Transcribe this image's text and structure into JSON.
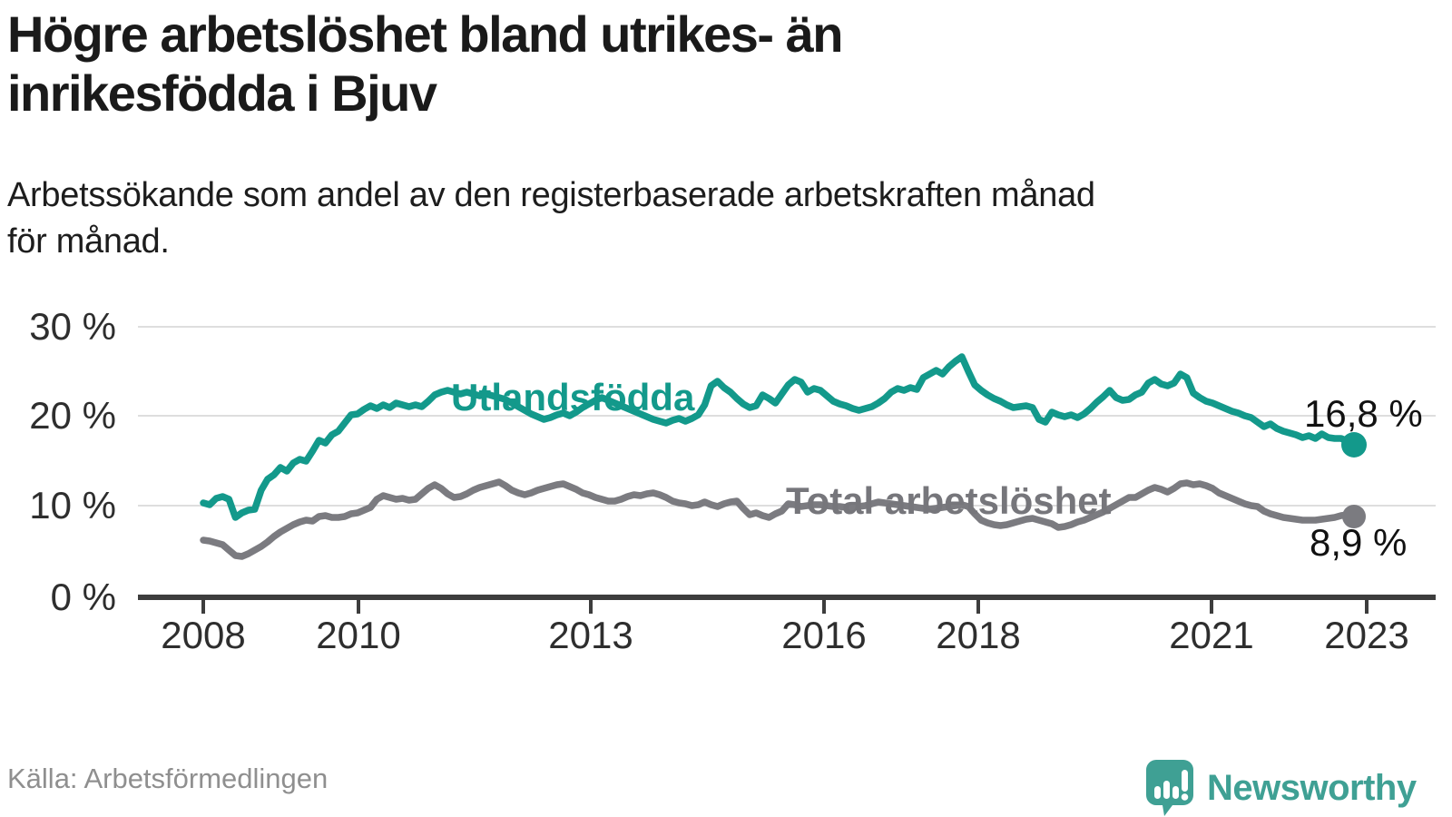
{
  "header": {
    "title_line1": "Högre arbetslöshet bland utrikes- än",
    "title_line2": "inrikesfödda i Bjuv",
    "subtitle_line1": "Arbetssökande som andel av den registerbaserade arbetskraften månad",
    "subtitle_line2": "för månad."
  },
  "footer": {
    "source": "Källa: Arbetsförmedlingen",
    "brand": "Newsworthy"
  },
  "colors": {
    "accent_teal": "#13998b",
    "line_gray": "#7b7b80",
    "grid": "#dedede",
    "axis": "#3d3d3d",
    "brand_teal": "#3fa094"
  },
  "chart_data": {
    "type": "line",
    "title": "Högre arbetslöshet bland utrikes- än inrikesfödda i Bjuv",
    "subtitle": "Arbetssökande som andel av den registerbaserade arbetskraften månad för månad.",
    "source": "Källa: Arbetsförmedlingen",
    "x_unit": "month",
    "x_range": [
      "2008-01",
      "2022-12"
    ],
    "x_tick_labels": [
      "2008",
      "2010",
      "2013",
      "2016",
      "2018",
      "2021",
      "2023"
    ],
    "y_tick_labels": [
      "30 %",
      "20 %",
      "10 %",
      "0 %"
    ],
    "ylim": [
      0,
      30
    ],
    "grid": "horizontal",
    "legend_position": "inline-labels",
    "series": [
      {
        "name": "Utlandsfödda",
        "color": "#13998b",
        "end_value": 16.8,
        "end_label": "16,8 %",
        "values": [
          10.4,
          10.2,
          10.9,
          11.1,
          10.8,
          8.8,
          9.3,
          9.6,
          9.7,
          11.8,
          13.0,
          13.5,
          14.3,
          13.9,
          14.8,
          15.2,
          15.0,
          16.1,
          17.3,
          17.0,
          17.9,
          18.3,
          19.2,
          20.1,
          20.2,
          20.7,
          21.1,
          20.8,
          21.2,
          20.9,
          21.4,
          21.2,
          21.0,
          21.2,
          21.0,
          21.6,
          22.3,
          22.6,
          22.8,
          22.6,
          22.4,
          22.6,
          22.4,
          22.2,
          22.4,
          22.2,
          22.0,
          21.8,
          21.4,
          21.0,
          20.6,
          20.2,
          19.9,
          19.6,
          19.8,
          20.1,
          20.3,
          20.0,
          20.4,
          20.9,
          21.3,
          21.7,
          22.0,
          21.7,
          21.4,
          21.1,
          20.8,
          20.5,
          20.2,
          19.9,
          19.6,
          19.4,
          19.2,
          19.5,
          19.7,
          19.4,
          19.7,
          20.1,
          21.2,
          23.3,
          23.8,
          23.1,
          22.6,
          21.9,
          21.3,
          20.9,
          21.1,
          22.3,
          21.9,
          21.4,
          22.4,
          23.4,
          24.0,
          23.7,
          22.6,
          23.0,
          22.8,
          22.2,
          21.6,
          21.3,
          21.1,
          20.8,
          20.6,
          20.8,
          21.0,
          21.4,
          21.9,
          22.6,
          23.0,
          22.8,
          23.1,
          22.9,
          24.2,
          24.6,
          25.0,
          24.6,
          25.4,
          26.0,
          26.5,
          24.9,
          23.4,
          22.8,
          22.3,
          21.9,
          21.6,
          21.2,
          20.9,
          21.0,
          21.1,
          20.9,
          19.6,
          19.3,
          20.4,
          20.1,
          19.9,
          20.1,
          19.8,
          20.2,
          20.8,
          21.5,
          22.1,
          22.8,
          22.0,
          21.7,
          21.8,
          22.3,
          22.6,
          23.6,
          24.0,
          23.5,
          23.3,
          23.6,
          24.6,
          24.2,
          22.5,
          22.0,
          21.6,
          21.4,
          21.1,
          20.8,
          20.5,
          20.3,
          20.0,
          19.8,
          19.3,
          18.8,
          19.1,
          18.6,
          18.3,
          18.1,
          17.9,
          17.6,
          17.8,
          17.5,
          18.0,
          17.6,
          17.5,
          17.5,
          17.2,
          16.8
        ]
      },
      {
        "name": "Total arbetslöshet",
        "color": "#7b7b80",
        "end_value": 8.9,
        "end_label": "8,9 %",
        "values": [
          6.3,
          6.2,
          6.0,
          5.8,
          5.2,
          4.6,
          4.5,
          4.8,
          5.2,
          5.6,
          6.1,
          6.7,
          7.2,
          7.6,
          8.0,
          8.3,
          8.5,
          8.4,
          8.9,
          9.0,
          8.8,
          8.8,
          8.9,
          9.2,
          9.3,
          9.6,
          9.9,
          10.8,
          11.2,
          11.0,
          10.8,
          10.9,
          10.7,
          10.8,
          11.4,
          12.0,
          12.4,
          12.0,
          11.4,
          11.0,
          11.1,
          11.4,
          11.8,
          12.1,
          12.3,
          12.5,
          12.7,
          12.3,
          11.8,
          11.5,
          11.3,
          11.5,
          11.8,
          12.0,
          12.2,
          12.4,
          12.5,
          12.2,
          11.9,
          11.5,
          11.3,
          11.0,
          10.8,
          10.6,
          10.6,
          10.8,
          11.1,
          11.3,
          11.2,
          11.4,
          11.5,
          11.3,
          11.0,
          10.6,
          10.4,
          10.3,
          10.1,
          10.2,
          10.5,
          10.2,
          10.0,
          10.3,
          10.5,
          10.6,
          9.8,
          9.1,
          9.3,
          9.0,
          8.8,
          9.2,
          9.5,
          10.3,
          10.2,
          10.0,
          10.1,
          10.2,
          10.2,
          10.1,
          10.0,
          10.0,
          9.9,
          9.9,
          10.0,
          10.1,
          10.3,
          10.5,
          10.4,
          10.3,
          10.2,
          10.1,
          10.0,
          9.9,
          9.8,
          9.7,
          9.8,
          9.9,
          10.0,
          10.1,
          10.2,
          10.0,
          9.2,
          8.5,
          8.2,
          8.0,
          7.9,
          8.0,
          8.2,
          8.4,
          8.6,
          8.7,
          8.5,
          8.3,
          8.1,
          7.7,
          7.8,
          8.0,
          8.3,
          8.5,
          8.8,
          9.1,
          9.4,
          9.8,
          10.2,
          10.6,
          11.0,
          11.0,
          11.4,
          11.8,
          12.1,
          11.9,
          11.6,
          12.0,
          12.5,
          12.6,
          12.4,
          12.5,
          12.3,
          12.0,
          11.5,
          11.2,
          10.9,
          10.6,
          10.3,
          10.1,
          10.0,
          9.5,
          9.2,
          9.0,
          8.8,
          8.7,
          8.6,
          8.5,
          8.5,
          8.5,
          8.6,
          8.7,
          8.8,
          9.0,
          9.1,
          8.9
        ]
      }
    ]
  }
}
